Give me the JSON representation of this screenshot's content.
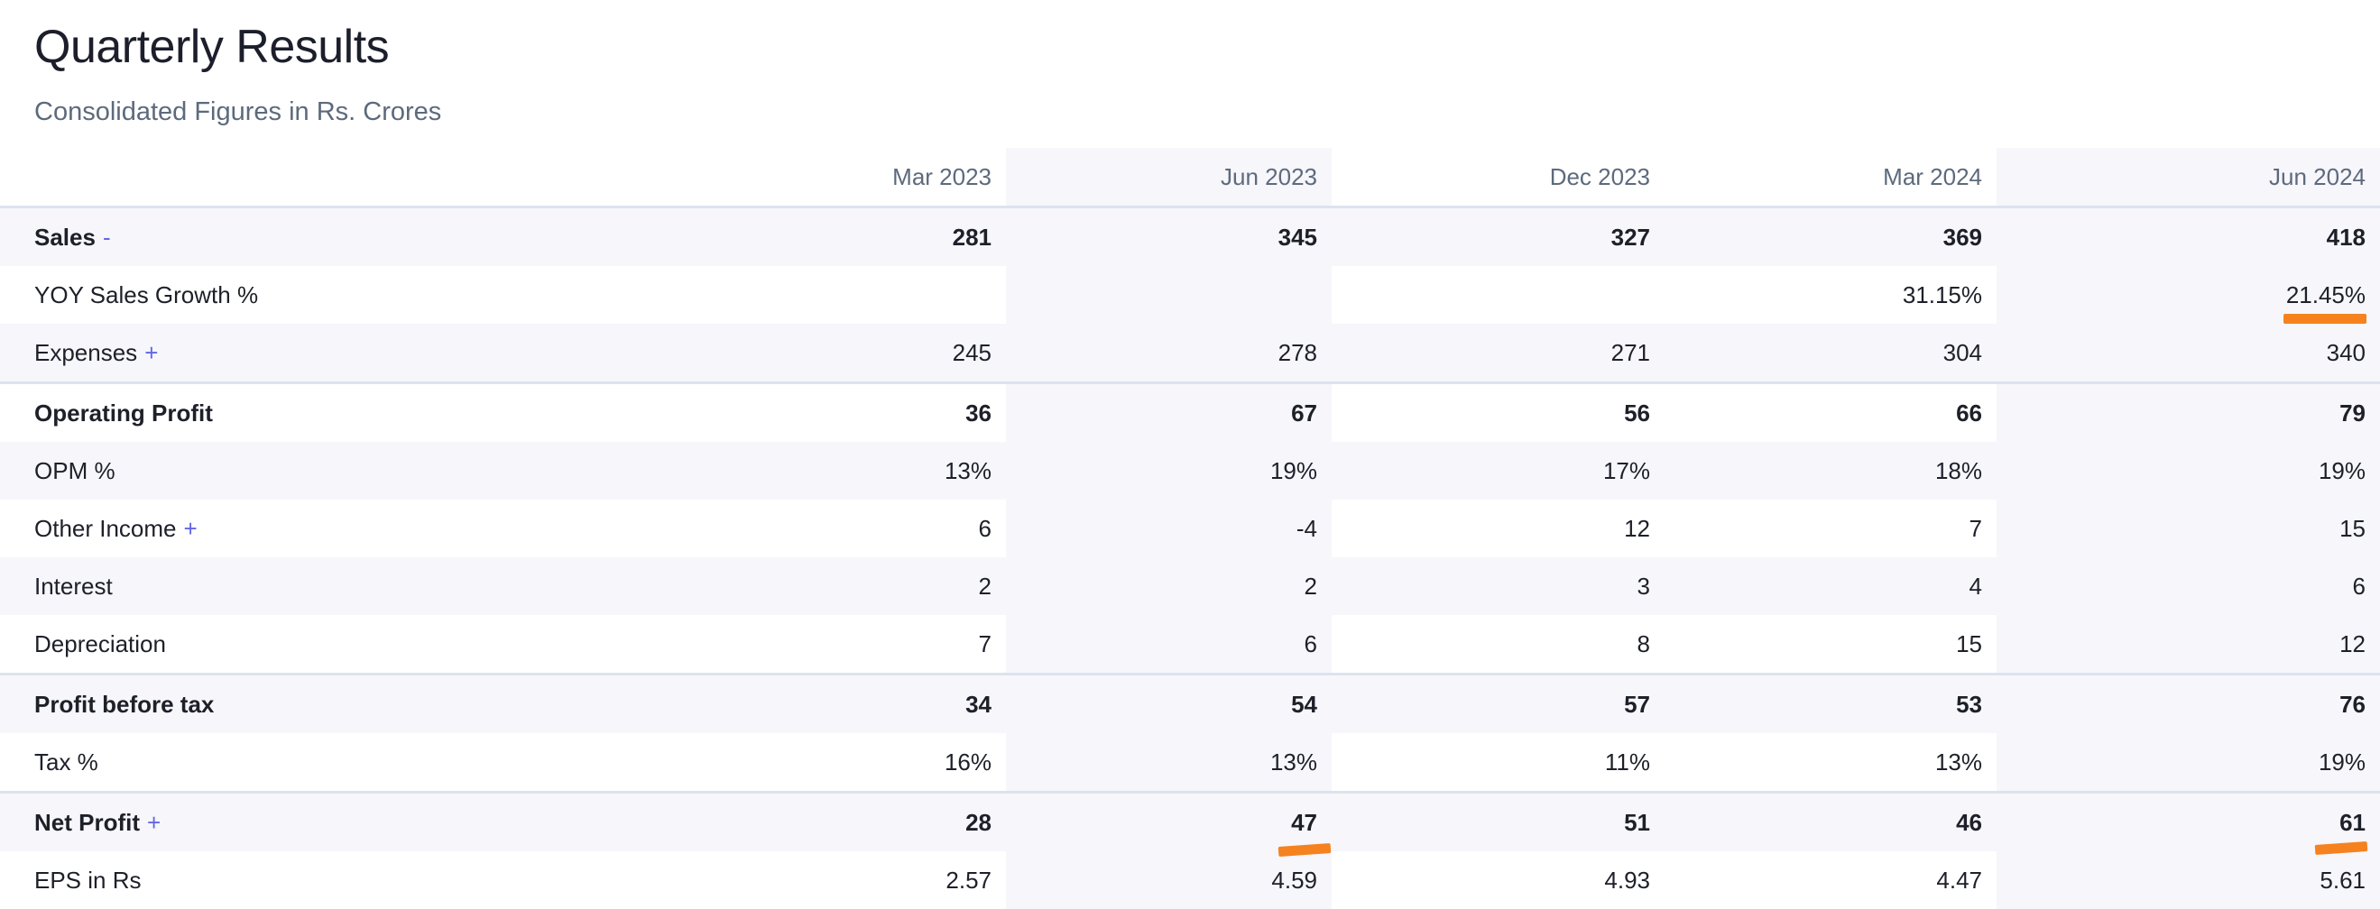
{
  "header": {
    "title": "Quarterly Results",
    "subtitle": "Consolidated Figures in Rs. Crores"
  },
  "table": {
    "columns": [
      "Mar 2023",
      "Jun 2023",
      "Dec 2023",
      "Mar 2024",
      "Jun 2024"
    ],
    "rows": [
      {
        "label": "Sales",
        "toggle": "-",
        "values": [
          "281",
          "345",
          "327",
          "369",
          "418"
        ]
      },
      {
        "label": "YOY Sales Growth %",
        "toggle": "",
        "values": [
          "",
          "",
          "",
          "31.15%",
          "21.45%"
        ]
      },
      {
        "label": "Expenses",
        "toggle": "+",
        "values": [
          "245",
          "278",
          "271",
          "304",
          "340"
        ]
      },
      {
        "label": "Operating Profit",
        "toggle": "",
        "values": [
          "36",
          "67",
          "56",
          "66",
          "79"
        ]
      },
      {
        "label": "OPM %",
        "toggle": "",
        "values": [
          "13%",
          "19%",
          "17%",
          "18%",
          "19%"
        ]
      },
      {
        "label": "Other Income",
        "toggle": "+",
        "values": [
          "6",
          "-4",
          "12",
          "7",
          "15"
        ]
      },
      {
        "label": "Interest",
        "toggle": "",
        "values": [
          "2",
          "2",
          "3",
          "4",
          "6"
        ]
      },
      {
        "label": "Depreciation",
        "toggle": "",
        "values": [
          "7",
          "6",
          "8",
          "15",
          "12"
        ]
      },
      {
        "label": "Profit before tax",
        "toggle": "",
        "values": [
          "34",
          "54",
          "57",
          "53",
          "76"
        ]
      },
      {
        "label": "Tax %",
        "toggle": "",
        "values": [
          "16%",
          "13%",
          "11%",
          "13%",
          "19%"
        ]
      },
      {
        "label": "Net Profit",
        "toggle": "+",
        "values": [
          "28",
          "47",
          "51",
          "46",
          "61"
        ]
      },
      {
        "label": "EPS in Rs",
        "toggle": "",
        "values": [
          "2.57",
          "4.59",
          "4.93",
          "4.47",
          "5.61"
        ]
      }
    ]
  },
  "colors": {
    "highlight_mark": "#f5821f",
    "toggle": "#6266e6",
    "stripe": "#f6f6fb",
    "separator": "#dbe3ef"
  }
}
